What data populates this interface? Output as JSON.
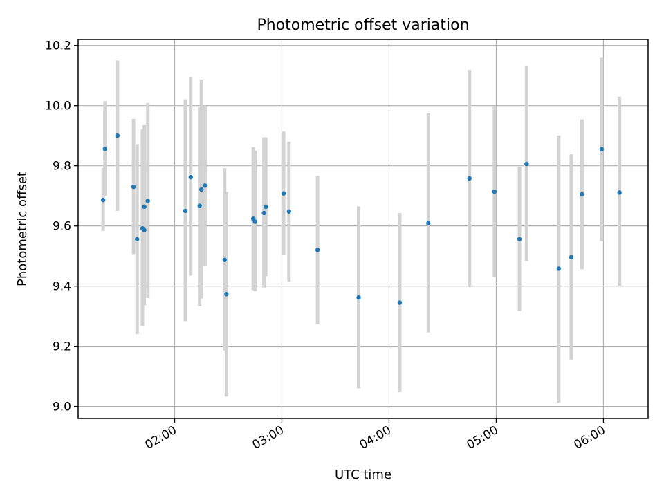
{
  "chart_data": {
    "type": "scatter",
    "title": "Photometric offset variation",
    "xlabel": "UTC time",
    "ylabel": "Photometric offset",
    "grid": true,
    "xlim": [
      "01:06",
      "06:25"
    ],
    "ylim": [
      8.96,
      10.22
    ],
    "yticks": [
      9.0,
      9.2,
      9.4,
      9.6,
      9.8,
      10.0,
      10.2
    ],
    "xticks": [
      "02:00",
      "03:00",
      "04:00",
      "05:00",
      "06:00"
    ],
    "colors": {
      "points": "#1f77b4",
      "errorbars": "#d3d3d3"
    },
    "series": [
      {
        "points": [
          {
            "x": "01:20",
            "y": 9.686,
            "ylo": 9.583,
            "yhi": 9.793
          },
          {
            "x": "01:21",
            "y": 9.856,
            "ylo": 9.7,
            "yhi": 10.015
          },
          {
            "x": "01:28",
            "y": 9.9,
            "ylo": 9.65,
            "yhi": 10.15
          },
          {
            "x": "01:37",
            "y": 9.73,
            "ylo": 9.506,
            "yhi": 9.956
          },
          {
            "x": "01:39",
            "y": 9.556,
            "ylo": 9.24,
            "yhi": 9.872
          },
          {
            "x": "01:42",
            "y": 9.592,
            "ylo": 9.268,
            "yhi": 9.921
          },
          {
            "x": "01:43",
            "y": 9.586,
            "ylo": 9.336,
            "yhi": 9.935
          },
          {
            "x": "01:43",
            "y": 9.664,
            "ylo": 9.395,
            "yhi": 9.933
          },
          {
            "x": "01:45",
            "y": 9.683,
            "ylo": 9.36,
            "yhi": 10.009
          },
          {
            "x": "02:06",
            "y": 9.65,
            "ylo": 9.283,
            "yhi": 10.021
          },
          {
            "x": "02:09",
            "y": 9.762,
            "ylo": 9.435,
            "yhi": 10.094
          },
          {
            "x": "02:14",
            "y": 9.667,
            "ylo": 9.333,
            "yhi": 9.994
          },
          {
            "x": "02:15",
            "y": 9.721,
            "ylo": 9.359,
            "yhi": 10.087
          },
          {
            "x": "02:17",
            "y": 9.734,
            "ylo": 9.467,
            "yhi": 10.0
          },
          {
            "x": "02:28",
            "y": 9.487,
            "ylo": 9.186,
            "yhi": 9.792
          },
          {
            "x": "02:29",
            "y": 9.373,
            "ylo": 9.033,
            "yhi": 9.714
          },
          {
            "x": "02:44",
            "y": 9.624,
            "ylo": 9.387,
            "yhi": 9.862
          },
          {
            "x": "02:45",
            "y": 9.614,
            "ylo": 9.383,
            "yhi": 9.85
          },
          {
            "x": "02:50",
            "y": 9.643,
            "ylo": 9.395,
            "yhi": 9.894
          },
          {
            "x": "02:51",
            "y": 9.664,
            "ylo": 9.433,
            "yhi": 9.895
          },
          {
            "x": "03:01",
            "y": 9.708,
            "ylo": 9.505,
            "yhi": 9.914
          },
          {
            "x": "03:04",
            "y": 9.648,
            "ylo": 9.415,
            "yhi": 9.88
          },
          {
            "x": "03:20",
            "y": 9.52,
            "ylo": 9.273,
            "yhi": 9.767
          },
          {
            "x": "03:43",
            "y": 9.362,
            "ylo": 9.06,
            "yhi": 9.665
          },
          {
            "x": "04:06",
            "y": 9.345,
            "ylo": 9.047,
            "yhi": 9.643
          },
          {
            "x": "04:22",
            "y": 9.609,
            "ylo": 9.246,
            "yhi": 9.974
          },
          {
            "x": "04:45",
            "y": 9.758,
            "ylo": 9.397,
            "yhi": 10.119
          },
          {
            "x": "04:59",
            "y": 9.714,
            "ylo": 9.43,
            "yhi": 9.998
          },
          {
            "x": "05:13",
            "y": 9.556,
            "ylo": 9.317,
            "yhi": 9.797
          },
          {
            "x": "05:17",
            "y": 9.806,
            "ylo": 9.483,
            "yhi": 10.131
          },
          {
            "x": "05:35",
            "y": 9.458,
            "ylo": 9.013,
            "yhi": 9.901
          },
          {
            "x": "05:42",
            "y": 9.496,
            "ylo": 9.156,
            "yhi": 9.838
          },
          {
            "x": "05:48",
            "y": 9.705,
            "ylo": 9.456,
            "yhi": 9.954
          },
          {
            "x": "05:59",
            "y": 9.855,
            "ylo": 9.549,
            "yhi": 10.159
          },
          {
            "x": "06:09",
            "y": 9.711,
            "ylo": 9.398,
            "yhi": 10.03
          }
        ]
      }
    ]
  }
}
